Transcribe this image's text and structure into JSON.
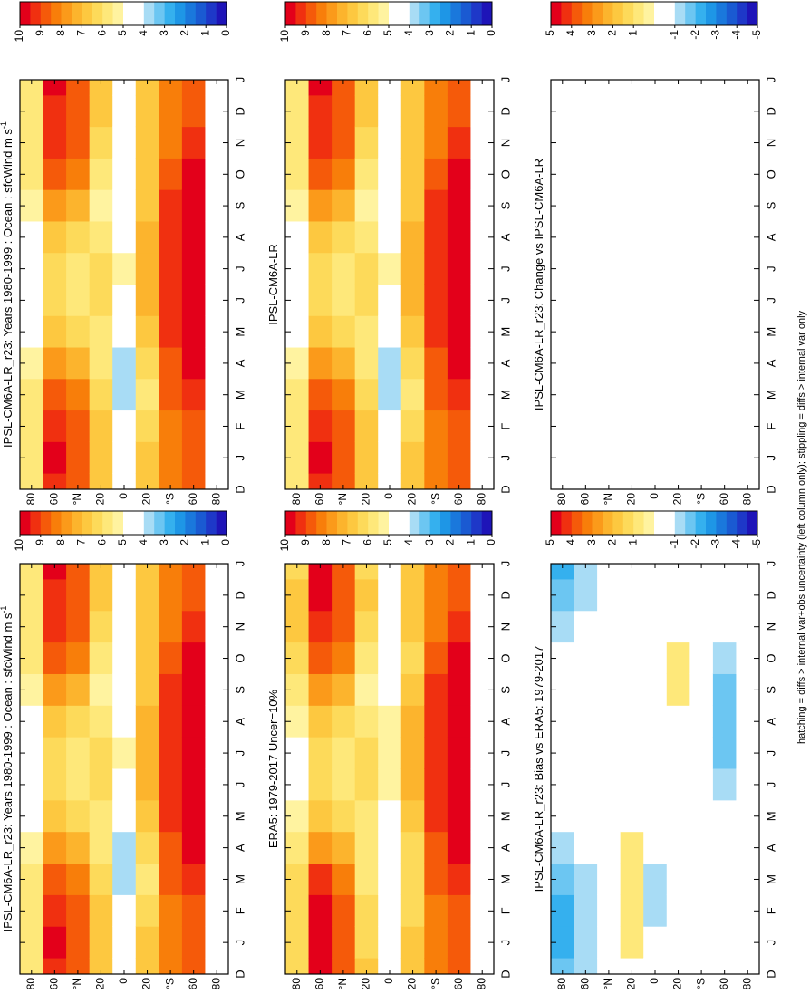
{
  "footnote": "hatching = diffs > internal var+obs uncertainty (left column only); stippling = diffs > internal var only",
  "colors": [
    "#e3001a",
    "#f03010",
    "#f55a0a",
    "#f87e0a",
    "#fb9a1a",
    "#fcb42d",
    "#fdc840",
    "#fdda5a",
    "#fee87a",
    "#fff3a0",
    "#ffffff",
    "#ffffff",
    "#a8dcf5",
    "#6cc6f2",
    "#35b0ee",
    "#1e96e6",
    "#1a78dc",
    "#1a5ad2",
    "#1e38c8",
    "#1e14b8"
  ],
  "chart_data": [
    {
      "type": "heatmap",
      "title": "IPSL-CM6A-LR_r23: Years 1980-1999 : Ocean : sfcWind m s",
      "title_superscript": "-1",
      "categories": [
        "D",
        "J",
        "F",
        "M",
        "A",
        "M",
        "J",
        "J",
        "A",
        "S",
        "O",
        "N",
        "D",
        "J"
      ],
      "y": [
        80,
        60,
        40,
        20,
        0,
        -20,
        -40,
        -60,
        -80
      ],
      "ylim": [
        90,
        -90
      ],
      "yticks": [
        80,
        60,
        {
          "value": 40,
          "label": "°N"
        },
        20,
        0,
        {
          "value": -20,
          "label": "20"
        },
        {
          "value": -40,
          "label": "°S"
        },
        {
          "value": -60,
          "label": "60"
        },
        {
          "value": -80,
          "label": "80"
        }
      ],
      "clim": [
        0,
        10
      ],
      "cticks": [
        10,
        9,
        8,
        7,
        6,
        5,
        4,
        3,
        2,
        1,
        0
      ],
      "values": [
        [
          6,
          6,
          6,
          6,
          5.5,
          5,
          5,
          5,
          5,
          5.5,
          6,
          6,
          6,
          6
        ],
        [
          9.5,
          10,
          9.5,
          9,
          8,
          7,
          6.5,
          6.5,
          7,
          8,
          9,
          9.5,
          9.5,
          10
        ],
        [
          9,
          9,
          9,
          8.5,
          7.5,
          6.5,
          6,
          6,
          6.5,
          7.5,
          8.5,
          9,
          9,
          9
        ],
        [
          7,
          7,
          7,
          6.5,
          6,
          6,
          6.5,
          6.5,
          6,
          5.5,
          6,
          6.5,
          7,
          7
        ],
        [
          5,
          5,
          4.5,
          4,
          4,
          4.5,
          5,
          5.5,
          5,
          4.5,
          4.5,
          5,
          5,
          5
        ],
        [
          7,
          7,
          6.5,
          6,
          6.5,
          7,
          7.5,
          7.5,
          7.5,
          7,
          7,
          7,
          7,
          7
        ],
        [
          8.5,
          8.5,
          8.5,
          9,
          9,
          9.5,
          9.5,
          9.5,
          9.5,
          9.5,
          9,
          8.5,
          8.5,
          8.5
        ],
        [
          9,
          9,
          9,
          9.5,
          10,
          10,
          10,
          10,
          10,
          10,
          10,
          9.5,
          9,
          9
        ],
        [
          4.5,
          5,
          5,
          5,
          5,
          5,
          5,
          5,
          5,
          5,
          5,
          5,
          5,
          4.5
        ]
      ]
    },
    {
      "type": "heatmap",
      "title": "IPSL-CM6A-LR",
      "categories": [
        "D",
        "J",
        "F",
        "M",
        "A",
        "M",
        "J",
        "J",
        "A",
        "S",
        "O",
        "N",
        "D",
        "J"
      ],
      "y": [
        80,
        60,
        40,
        20,
        0,
        -20,
        -40,
        -60,
        -80
      ],
      "ylim": [
        90,
        -90
      ],
      "yticks": [
        80,
        60,
        {
          "value": 40,
          "label": "°N"
        },
        20,
        0,
        {
          "value": -20,
          "label": "20"
        },
        {
          "value": -40,
          "label": "°S"
        },
        {
          "value": -60,
          "label": "60"
        },
        {
          "value": -80,
          "label": "80"
        }
      ],
      "clim": [
        0,
        10
      ],
      "cticks": [
        10,
        9,
        8,
        7,
        6,
        5,
        4,
        3,
        2,
        1,
        0
      ],
      "values": [
        [
          6,
          6,
          6,
          6,
          5.5,
          5,
          5,
          5,
          5,
          5.5,
          6,
          6,
          6,
          6
        ],
        [
          9.5,
          10,
          9.5,
          9,
          8,
          7,
          6.5,
          6.5,
          7,
          8,
          9,
          9.5,
          9.5,
          10
        ],
        [
          9,
          9,
          9,
          8.5,
          7.5,
          6.5,
          6,
          6,
          6.5,
          7.5,
          8.5,
          9,
          9,
          9
        ],
        [
          7,
          7,
          7,
          6.5,
          6,
          6,
          6.5,
          6.5,
          6,
          5.5,
          6,
          6.5,
          7,
          7
        ],
        [
          5,
          5,
          4.5,
          4,
          4,
          4.5,
          5,
          5.5,
          5,
          4.5,
          4.5,
          5,
          5,
          5
        ],
        [
          7,
          7,
          6.5,
          6,
          6.5,
          7,
          7.5,
          7.5,
          7.5,
          7,
          7,
          7,
          7,
          7
        ],
        [
          8.5,
          8.5,
          8.5,
          9,
          9,
          9.5,
          9.5,
          9.5,
          9.5,
          9.5,
          9,
          8.5,
          8.5,
          8.5
        ],
        [
          9,
          9,
          9,
          9.5,
          10,
          10,
          10,
          10,
          10,
          10,
          10,
          9.5,
          9,
          9
        ],
        [
          4.5,
          5,
          5,
          5,
          5,
          5,
          5,
          5,
          5,
          5,
          5,
          5,
          5,
          4.5
        ]
      ]
    },
    {
      "type": "heatmap",
      "title": "IPSL-CM6A-LR_r23: Change vs IPSL-CM6A-LR",
      "categories": [
        "D",
        "J",
        "F",
        "M",
        "A",
        "M",
        "J",
        "J",
        "A",
        "S",
        "O",
        "N",
        "D",
        "J"
      ],
      "y": [
        80,
        60,
        40,
        20,
        0,
        -20,
        -40,
        -60,
        -80
      ],
      "ylim": [
        90,
        -90
      ],
      "yticks": [
        80,
        60,
        {
          "value": 40,
          "label": "°N"
        },
        20,
        0,
        {
          "value": -20,
          "label": "20"
        },
        {
          "value": -40,
          "label": "°S"
        },
        {
          "value": -60,
          "label": "60"
        },
        {
          "value": -80,
          "label": "80"
        }
      ],
      "clim": [
        -5,
        5
      ],
      "cticks": [
        5,
        4,
        3,
        2,
        1,
        -1,
        -2,
        -3,
        -4,
        -5
      ],
      "values": [
        [
          0,
          0,
          0,
          0,
          0,
          0,
          0,
          0,
          0,
          0,
          0,
          0,
          0,
          0
        ],
        [
          0,
          0,
          0,
          0,
          0,
          0,
          0,
          0,
          0,
          0,
          0,
          0,
          0,
          0
        ],
        [
          0,
          0,
          0,
          0,
          0,
          0,
          0,
          0,
          0,
          0,
          0,
          0,
          0,
          0
        ],
        [
          0,
          0,
          0,
          0,
          0,
          0,
          0,
          0,
          0,
          0,
          0,
          0,
          0,
          0
        ],
        [
          0,
          0,
          0,
          0,
          0,
          0,
          0,
          0,
          0,
          0,
          0,
          0,
          0,
          0
        ],
        [
          0,
          0,
          0,
          0,
          0,
          0,
          0,
          0,
          0,
          0,
          0,
          0,
          0,
          0
        ],
        [
          0,
          0,
          0,
          0,
          0,
          0,
          0,
          0,
          0,
          0,
          0,
          0,
          0,
          0
        ],
        [
          0,
          0,
          0,
          0,
          0,
          0,
          0,
          0,
          0,
          0,
          0,
          0,
          0,
          0
        ],
        [
          0,
          0,
          0,
          0,
          0,
          0,
          0,
          0,
          0,
          0,
          0,
          0,
          0,
          0
        ]
      ]
    },
    {
      "type": "heatmap",
      "title": "IPSL-CM6A-LR_r23: Years 1980-1999 : Ocean : sfcWind m s",
      "title_superscript": "-1",
      "categories": [
        "D",
        "J",
        "F",
        "M",
        "A",
        "M",
        "J",
        "J",
        "A",
        "S",
        "O",
        "N",
        "D",
        "J"
      ],
      "y": [
        80,
        60,
        40,
        20,
        0,
        -20,
        -40,
        -60,
        -80
      ],
      "ylim": [
        90,
        -90
      ],
      "yticks": [
        80,
        60,
        {
          "value": 40,
          "label": "°N"
        },
        20,
        0,
        {
          "value": -20,
          "label": "20"
        },
        {
          "value": -40,
          "label": "°S"
        },
        {
          "value": -60,
          "label": "60"
        },
        {
          "value": -80,
          "label": "80"
        }
      ],
      "clim": [
        0,
        10
      ],
      "cticks": [
        10,
        9,
        8,
        7,
        6,
        5,
        4,
        3,
        2,
        1,
        0
      ],
      "values": [
        [
          6,
          6,
          6,
          6,
          5.5,
          5,
          5,
          5,
          5,
          5.5,
          6,
          6,
          6,
          6
        ],
        [
          9.5,
          10,
          9.5,
          9,
          8,
          7,
          6.5,
          6.5,
          7,
          8,
          9,
          9.5,
          9.5,
          10
        ],
        [
          9,
          9,
          9,
          8.5,
          7.5,
          6.5,
          6,
          6,
          6.5,
          7.5,
          8.5,
          9,
          9,
          9
        ],
        [
          7,
          7,
          7,
          6.5,
          6,
          6,
          6.5,
          6.5,
          6,
          5.5,
          6,
          6.5,
          7,
          7
        ],
        [
          5,
          5,
          4.5,
          4,
          4,
          4.5,
          5,
          5.5,
          5,
          4.5,
          4.5,
          5,
          5,
          5
        ],
        [
          7,
          7,
          6.5,
          6,
          6.5,
          7,
          7.5,
          7.5,
          7.5,
          7,
          7,
          7,
          7,
          7
        ],
        [
          8.5,
          8.5,
          8.5,
          9,
          9,
          9.5,
          9.5,
          9.5,
          9.5,
          9.5,
          9,
          8.5,
          8.5,
          8.5
        ],
        [
          9,
          9,
          9,
          9.5,
          10,
          10,
          10,
          10,
          10,
          10,
          10,
          9.5,
          9,
          9
        ],
        [
          4.5,
          5,
          5,
          5,
          5,
          5,
          5,
          5,
          5,
          5,
          5,
          5,
          5,
          4.5
        ]
      ]
    },
    {
      "type": "heatmap",
      "title": "ERA5: 1979-2017 Uncer=10%",
      "categories": [
        "D",
        "J",
        "F",
        "M",
        "A",
        "M",
        "J",
        "J",
        "A",
        "S",
        "O",
        "N",
        "D",
        "J"
      ],
      "y": [
        80,
        60,
        40,
        20,
        0,
        -20,
        -40,
        -60,
        -80
      ],
      "ylim": [
        90,
        -90
      ],
      "yticks": [
        80,
        60,
        {
          "value": 40,
          "label": "°N"
        },
        20,
        0,
        {
          "value": -20,
          "label": "20"
        },
        {
          "value": -40,
          "label": "°S"
        },
        {
          "value": -60,
          "label": "60"
        },
        {
          "value": -80,
          "label": "80"
        }
      ],
      "clim": [
        0,
        10
      ],
      "cticks": [
        10,
        9,
        8,
        7,
        6,
        5,
        4,
        3,
        2,
        1,
        0
      ],
      "values": [
        [
          6.5,
          6.5,
          6.5,
          6.5,
          6,
          5.5,
          5,
          5,
          5.5,
          6,
          6.5,
          7,
          7,
          6.5
        ],
        [
          10,
          10,
          10,
          9.5,
          8,
          7,
          6.5,
          6.5,
          7,
          8,
          9,
          9.5,
          10,
          10
        ],
        [
          9,
          9,
          9,
          8.5,
          7.5,
          6.5,
          6,
          6,
          6.5,
          7.5,
          8.5,
          9,
          9,
          9
        ],
        [
          7,
          6.5,
          6.5,
          6,
          6,
          6,
          6.5,
          6.5,
          6,
          5.5,
          6,
          6.5,
          7,
          6.5
        ],
        [
          5,
          5,
          5,
          5,
          4.5,
          5,
          5.5,
          5.5,
          5.5,
          5,
          5,
          5,
          5,
          5
        ],
        [
          7,
          7,
          6.5,
          6.5,
          6.5,
          7,
          7.5,
          7.5,
          7.5,
          7,
          6.5,
          7,
          7,
          7
        ],
        [
          8.5,
          8.5,
          8.5,
          9,
          9,
          9.5,
          9.5,
          9.5,
          9.5,
          9.5,
          9,
          8.5,
          8.5,
          8.5
        ],
        [
          9,
          9,
          9,
          9.5,
          10,
          10,
          10.5,
          11,
          11,
          10.5,
          10,
          9.5,
          9,
          9
        ],
        [
          5,
          5,
          5,
          5,
          5,
          5,
          5,
          5,
          5,
          5,
          5,
          5,
          5,
          5
        ]
      ]
    },
    {
      "type": "heatmap",
      "title": "IPSL-CM6A-LR_r23: Bias vs ERA5: 1979-2017",
      "categories": [
        "D",
        "J",
        "F",
        "M",
        "A",
        "M",
        "J",
        "J",
        "A",
        "S",
        "O",
        "N",
        "D",
        "J"
      ],
      "y": [
        80,
        60,
        40,
        20,
        0,
        -20,
        -40,
        -60,
        -80
      ],
      "ylim": [
        90,
        -90
      ],
      "yticks": [
        80,
        60,
        {
          "value": 40,
          "label": "°N"
        },
        20,
        0,
        {
          "value": -20,
          "label": "20"
        },
        {
          "value": -40,
          "label": "°S"
        },
        {
          "value": -60,
          "label": "60"
        },
        {
          "value": -80,
          "label": "80"
        }
      ],
      "clim": [
        -5,
        5
      ],
      "cticks": [
        5,
        4,
        3,
        2,
        1,
        -1,
        -2,
        -3,
        -4,
        -5
      ],
      "values": [
        [
          -1.5,
          -2,
          -2,
          -1.5,
          -1,
          -0.5,
          0,
          0,
          0,
          0,
          -0.5,
          -1,
          -1.5,
          -2
        ],
        [
          -1,
          -1,
          -1,
          -1,
          -0.5,
          0,
          0,
          0,
          0,
          0,
          0,
          -0.5,
          -1,
          -1
        ],
        [
          0,
          0,
          0,
          0,
          0,
          0,
          0,
          0,
          0,
          0,
          0,
          0,
          0,
          0
        ],
        [
          0,
          0.6,
          0.6,
          0.6,
          0.6,
          0,
          0,
          0,
          0,
          0,
          0,
          0,
          0,
          0
        ],
        [
          0,
          0,
          -1,
          -1,
          -0.5,
          0,
          0,
          0,
          -0.3,
          0,
          0,
          0,
          0,
          0
        ],
        [
          0,
          0,
          0,
          0,
          0,
          0,
          0,
          0,
          0,
          0.6,
          0.6,
          0,
          0,
          0
        ],
        [
          0,
          0,
          0,
          0,
          0,
          0,
          0,
          0,
          0,
          0,
          0,
          0,
          0,
          0
        ],
        [
          0,
          0,
          0,
          0,
          0,
          0,
          -1,
          -1.5,
          -1.5,
          -1.5,
          -1,
          0,
          0,
          0
        ],
        [
          0,
          0,
          0,
          0,
          0,
          0,
          0,
          0,
          0,
          0,
          0,
          0,
          0,
          0
        ]
      ]
    }
  ]
}
